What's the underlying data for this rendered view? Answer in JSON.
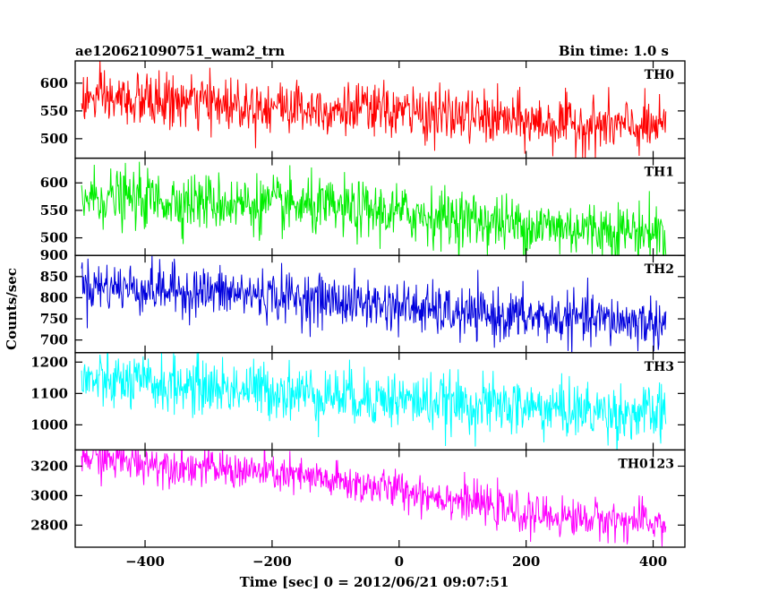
{
  "header": {
    "title": "ae120621090751_wam2_trn",
    "bin_time": "Bin time: 1.0 s"
  },
  "chart_data": {
    "type": "line",
    "xlabel": "Time [sec] 0 = 2012/06/21 09:07:51",
    "ylabel": "Counts/sec",
    "xlim": [
      -510,
      450
    ],
    "x_range": [
      -500,
      420
    ],
    "x_step": 1,
    "x_ticks": [
      -400,
      -200,
      0,
      200,
      400
    ],
    "x_tick_labels": [
      "−400",
      "−200",
      "0",
      "200",
      "400"
    ],
    "panels": [
      {
        "name": "TH0",
        "color": "#ff0000",
        "ylim": [
          465,
          640
        ],
        "yticks": [
          500,
          550,
          600
        ],
        "ytick_labels": [
          "500",
          "550",
          "600"
        ],
        "trend": [
          [
            -500,
            572
          ],
          [
            -200,
            560
          ],
          [
            0,
            548
          ],
          [
            100,
            540
          ],
          [
            200,
            530
          ],
          [
            420,
            518
          ]
        ],
        "noise": 24
      },
      {
        "name": "TH1",
        "color": "#00ee00",
        "ylim": [
          468,
          645
        ],
        "yticks": [
          500,
          550,
          600
        ],
        "ytick_labels": [
          "500",
          "550",
          "600"
        ],
        "trend": [
          [
            -500,
            575
          ],
          [
            -200,
            560
          ],
          [
            0,
            545
          ],
          [
            100,
            535
          ],
          [
            200,
            522
          ],
          [
            420,
            510
          ]
        ],
        "noise": 26
      },
      {
        "name": "TH2",
        "color": "#0000dd",
        "ylim": [
          670,
          900
        ],
        "yticks": [
          700,
          750,
          800,
          850,
          900
        ],
        "ytick_labels": [
          "700",
          "750",
          "800",
          "850",
          "900"
        ],
        "trend": [
          [
            -500,
            830
          ],
          [
            -200,
            805
          ],
          [
            0,
            780
          ],
          [
            100,
            760
          ],
          [
            200,
            755
          ],
          [
            420,
            740
          ]
        ],
        "noise": 30
      },
      {
        "name": "TH3",
        "color": "#00ffff",
        "ylim": [
          920,
          1230
        ],
        "yticks": [
          1000,
          1100,
          1200
        ],
        "ytick_labels": [
          "1000",
          "1100",
          "1200"
        ],
        "trend": [
          [
            -500,
            1140
          ],
          [
            -200,
            1110
          ],
          [
            0,
            1080
          ],
          [
            100,
            1065
          ],
          [
            200,
            1055
          ],
          [
            420,
            1030
          ]
        ],
        "noise": 45
      },
      {
        "name": "TH0123",
        "color": "#ff00ff",
        "ylim": [
          2650,
          3310
        ],
        "yticks": [
          2800,
          3000,
          3200
        ],
        "ytick_labels": [
          "2800",
          "3000",
          "3200"
        ],
        "trend": [
          [
            -500,
            3260
          ],
          [
            -200,
            3150
          ],
          [
            0,
            3040
          ],
          [
            100,
            2970
          ],
          [
            200,
            2870
          ],
          [
            420,
            2810
          ]
        ],
        "noise": 65
      }
    ]
  }
}
